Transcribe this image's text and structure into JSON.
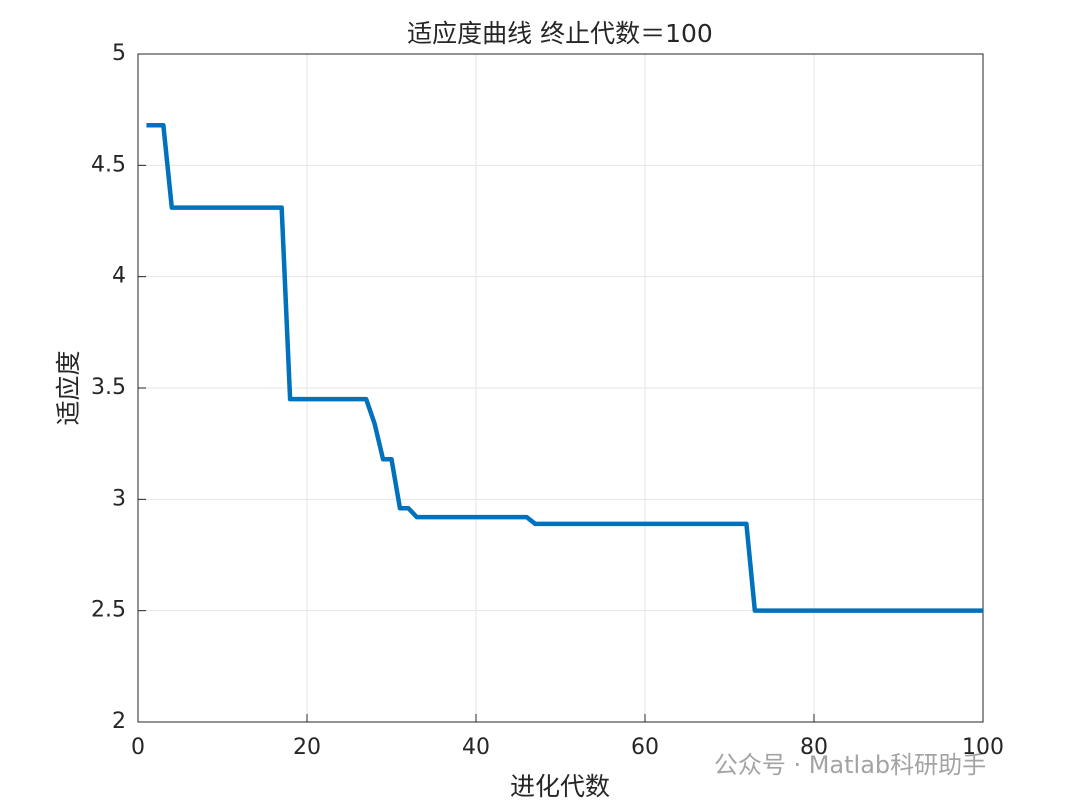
{
  "chart_data": {
    "type": "line",
    "title": "适应度曲线 终止代数＝100",
    "x_label": "进化代数",
    "y_label": "适应度",
    "x": [
      1,
      2,
      3,
      4,
      5,
      6,
      7,
      8,
      9,
      10,
      11,
      12,
      13,
      14,
      15,
      16,
      17,
      18,
      19,
      20,
      21,
      22,
      23,
      24,
      25,
      26,
      27,
      28,
      29,
      30,
      31,
      32,
      33,
      34,
      35,
      36,
      37,
      38,
      39,
      40,
      41,
      42,
      43,
      44,
      45,
      46,
      47,
      48,
      49,
      50,
      51,
      52,
      53,
      54,
      55,
      56,
      57,
      58,
      59,
      60,
      61,
      62,
      63,
      64,
      65,
      66,
      67,
      68,
      69,
      70,
      71,
      72,
      73,
      74,
      75,
      76,
      77,
      78,
      79,
      80,
      81,
      82,
      83,
      84,
      85,
      86,
      87,
      88,
      89,
      90,
      91,
      92,
      93,
      94,
      95,
      96,
      97,
      98,
      99,
      100
    ],
    "series": [
      {
        "color": "#0072bd",
        "values": [
          4.68,
          4.68,
          4.68,
          4.31,
          4.31,
          4.31,
          4.31,
          4.31,
          4.31,
          4.31,
          4.31,
          4.31,
          4.31,
          4.31,
          4.31,
          4.31,
          4.31,
          3.45,
          3.45,
          3.45,
          3.45,
          3.45,
          3.45,
          3.45,
          3.45,
          3.45,
          3.45,
          3.34,
          3.18,
          3.18,
          2.96,
          2.96,
          2.92,
          2.92,
          2.92,
          2.92,
          2.92,
          2.92,
          2.92,
          2.92,
          2.92,
          2.92,
          2.92,
          2.92,
          2.92,
          2.92,
          2.89,
          2.89,
          2.89,
          2.89,
          2.89,
          2.89,
          2.89,
          2.89,
          2.89,
          2.89,
          2.89,
          2.89,
          2.89,
          2.89,
          2.89,
          2.89,
          2.89,
          2.89,
          2.89,
          2.89,
          2.89,
          2.89,
          2.89,
          2.89,
          2.89,
          2.89,
          2.5,
          2.5,
          2.5,
          2.5,
          2.5,
          2.5,
          2.5,
          2.5,
          2.5,
          2.5,
          2.5,
          2.5,
          2.5,
          2.5,
          2.5,
          2.5,
          2.5,
          2.5,
          2.5,
          2.5,
          2.5,
          2.5,
          2.5,
          2.5,
          2.5,
          2.5,
          2.5,
          2.5
        ]
      }
    ],
    "xlim": [
      0,
      100
    ],
    "xticks": [
      0,
      20,
      40,
      60,
      80,
      100
    ],
    "ylim": [
      2,
      5
    ],
    "yticks": [
      2,
      2.5,
      3,
      3.5,
      4,
      4.5,
      5
    ],
    "grid": true,
    "watermark": "公众号 · Matlab科研助手"
  }
}
